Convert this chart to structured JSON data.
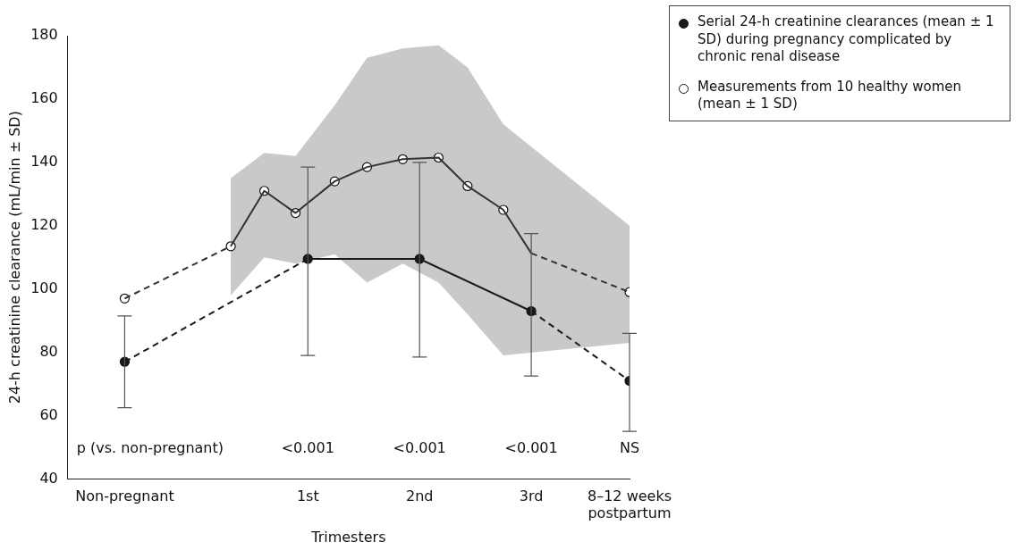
{
  "chart_data": {
    "type": "line",
    "xlabel": "Trimesters",
    "ylabel": "24-h creatinine clearance (mL/min ± SD)",
    "xlim": [
      -1.15,
      3.88
    ],
    "ylim": [
      40,
      180
    ],
    "xticks": [
      {
        "value": -0.64,
        "label": "Non-pregnant"
      },
      {
        "value": 1,
        "label": "1st"
      },
      {
        "value": 2,
        "label": "2nd"
      },
      {
        "value": 3,
        "label": "3rd"
      },
      {
        "value": 3.88,
        "label": "8–12 weeks postpartum"
      }
    ],
    "yticks": [
      40,
      60,
      80,
      100,
      120,
      140,
      160,
      180
    ],
    "grid": false,
    "legend": "top right",
    "annotations": [
      "p (vs. non-pregnant)",
      "<0.001",
      "<0.001",
      "<0.001",
      "NS"
    ],
    "series": [
      {
        "color": "#333333",
        "x": [
          -0.64,
          0.31
        ],
        "values": [
          97,
          113.5
        ],
        "marker": "none",
        "line_style": "dashed"
      },
      {
        "color": "#333333",
        "x": [
          0.31,
          0.61,
          0.89,
          1.24,
          1.53,
          1.85,
          2.17,
          2.43,
          2.75,
          3
        ],
        "values": [
          113.5,
          131,
          124,
          134,
          138.5,
          141,
          141.5,
          132.5,
          125,
          111.3
        ],
        "marker": "none",
        "line_style": "solid"
      },
      {
        "color": "#333333",
        "x": [
          3,
          3.88
        ],
        "values": [
          111.3,
          99
        ],
        "marker": "none",
        "line_style": "dashed"
      },
      {
        "color": "#1a1a1a",
        "x": [
          -0.64,
          1
        ],
        "values": [
          77,
          109.5
        ],
        "marker": "none",
        "line_style": "dashed"
      },
      {
        "color": "#1a1a1a",
        "x": [
          1,
          2,
          3
        ],
        "values": [
          109.5,
          109.5,
          93
        ],
        "marker": "none",
        "line_style": "solid"
      },
      {
        "color": "#1a1a1a",
        "x": [
          3,
          3.88
        ],
        "values": [
          93,
          71
        ],
        "marker": "none",
        "line_style": "dashed"
      },
      {
        "type": "scatter",
        "name": "Serial 24-h creatinine clearances (mean ± 1 SD) during pregnancy complicated by chronic renal disease",
        "color": "#1a1a1a",
        "x": [
          -0.64,
          1,
          2,
          3,
          3.88
        ],
        "values": [
          77,
          109.5,
          109.5,
          93,
          71
        ],
        "errors": [
          [
            62.5,
            91.5
          ],
          [
            79,
            138.5
          ],
          [
            78.5,
            140
          ],
          [
            72.5,
            117.5
          ],
          [
            55,
            86
          ]
        ],
        "marker": "circle"
      },
      {
        "type": "scatter",
        "name": "Measurements from 10 healthy women (mean ± 1 SD)",
        "color": "#ffffff",
        "x": [
          -0.64,
          0.31,
          0.61,
          0.89,
          1.24,
          1.53,
          1.85,
          2.17,
          2.43,
          2.75,
          3.88
        ],
        "values": [
          97,
          113.5,
          131,
          124,
          134,
          138.5,
          141,
          141.5,
          132.5,
          125,
          99
        ],
        "lower": [
          null,
          98,
          110,
          108,
          111,
          102,
          108,
          102,
          92,
          79,
          83
        ],
        "upper": [
          null,
          135,
          143,
          142,
          158,
          173,
          176,
          177,
          170,
          152,
          120
        ],
        "marker": "circle"
      }
    ]
  }
}
